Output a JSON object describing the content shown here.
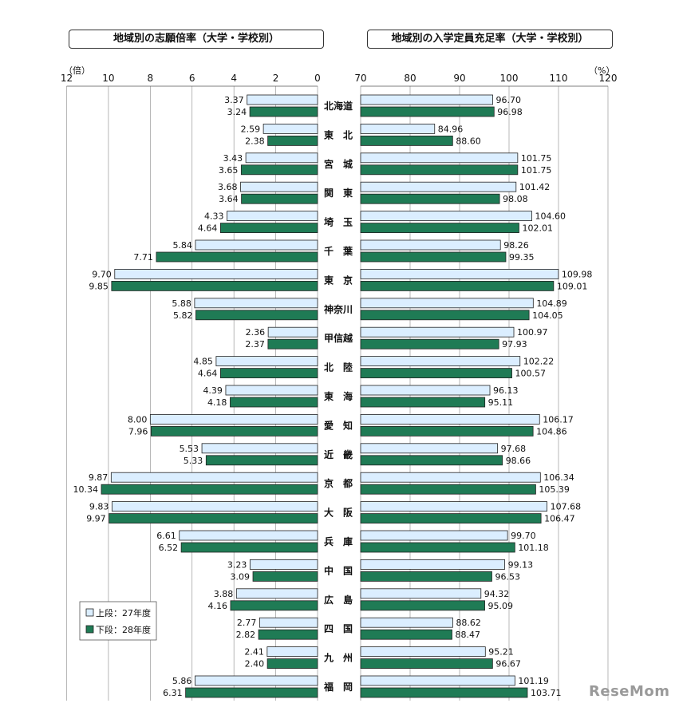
{
  "titles": {
    "left": "地域別の志願倍率（大学・学校別）",
    "right": "地域別の入学定員充足率（大学・学校別）"
  },
  "units": {
    "left": "（倍）",
    "right": "（%）"
  },
  "legend": {
    "upper": "上段：27年度",
    "lower": "下段：28年度"
  },
  "colors": {
    "upper_fill": "#dbeeff",
    "lower_fill": "#1f7b55",
    "outline": "#222222",
    "axis": "#555555"
  },
  "brand": "ReseMom",
  "chart_data": [
    {
      "type": "bar",
      "orientation": "horizontal",
      "direction": "reversed",
      "title": "地域別の志願倍率（大学・学校別）",
      "unit": "（倍）",
      "xlim": [
        0,
        12
      ],
      "ticks": [
        12,
        10,
        8,
        6,
        4,
        2,
        0
      ],
      "grid": true,
      "legend_position": "bottom-left",
      "categories": [
        "北海道",
        "東　北",
        "宮　城",
        "関　東",
        "埼　玉",
        "千　葉",
        "東　京",
        "神奈川",
        "甲信越",
        "北　陸",
        "東　海",
        "愛　知",
        "近　畿",
        "京　都",
        "大　阪",
        "兵　庫",
        "中　国",
        "広　島",
        "四　国",
        "九　州",
        "福　岡"
      ],
      "series": [
        {
          "name": "上段：27年度",
          "values": [
            3.37,
            2.59,
            3.43,
            3.68,
            4.33,
            5.84,
            9.7,
            5.88,
            2.36,
            4.85,
            4.39,
            8.0,
            5.53,
            9.87,
            9.83,
            6.61,
            3.23,
            3.88,
            2.77,
            2.41,
            5.86
          ],
          "labels": [
            "3.37",
            "2.59",
            "3.43",
            "3.68",
            "4.33",
            "5.84",
            "9.70",
            "5.88",
            "2.36",
            "4.85",
            "4.39",
            "8.00",
            "5.53",
            "9.87",
            "9.83",
            "6.61",
            "3.23",
            "3.88",
            "2.77",
            "2.41",
            "5.86"
          ]
        },
        {
          "name": "下段：28年度",
          "values": [
            3.24,
            2.38,
            3.65,
            3.64,
            4.64,
            7.71,
            9.85,
            5.82,
            2.37,
            4.64,
            4.18,
            7.96,
            5.33,
            10.34,
            9.97,
            6.52,
            3.09,
            4.16,
            2.82,
            2.4,
            6.31
          ],
          "labels": [
            "3.24",
            "2.38",
            "3.65",
            "3.64",
            "4.64",
            "7.71",
            "9.85",
            "5.82",
            "2.37",
            "4.64",
            "4.18",
            "7.96",
            "5.33",
            "10.34",
            "9.97",
            "6.52",
            "3.09",
            "4.16",
            "2.82",
            "2.40",
            "6.31"
          ]
        }
      ]
    },
    {
      "type": "bar",
      "orientation": "horizontal",
      "title": "地域別の入学定員充足率（大学・学校別）",
      "unit": "（%）",
      "xlim": [
        70,
        120
      ],
      "ticks": [
        70,
        80,
        90,
        100,
        110,
        120
      ],
      "grid": true,
      "categories": [
        "北海道",
        "東　北",
        "宮　城",
        "関　東",
        "埼　玉",
        "千　葉",
        "東　京",
        "神奈川",
        "甲信越",
        "北　陸",
        "東　海",
        "愛　知",
        "近　畿",
        "京　都",
        "大　阪",
        "兵　庫",
        "中　国",
        "広　島",
        "四　国",
        "九　州",
        "福　岡"
      ],
      "series": [
        {
          "name": "上段：27年度",
          "values": [
            96.7,
            84.96,
            101.75,
            101.42,
            104.6,
            98.26,
            109.98,
            104.89,
            100.97,
            102.22,
            96.13,
            106.17,
            97.68,
            106.34,
            107.68,
            99.7,
            99.13,
            94.32,
            88.62,
            95.21,
            101.19
          ],
          "labels": [
            "96.70",
            "84.96",
            "101.75",
            "101.42",
            "104.60",
            "98.26",
            "109.98",
            "104.89",
            "100.97",
            "102.22",
            "96.13",
            "106.17",
            "97.68",
            "106.34",
            "107.68",
            "99.70",
            "99.13",
            "94.32",
            "88.62",
            "95.21",
            "101.19"
          ]
        },
        {
          "name": "下段：28年度",
          "values": [
            96.98,
            88.6,
            101.75,
            98.08,
            102.01,
            99.35,
            109.01,
            104.05,
            97.93,
            100.57,
            95.11,
            104.86,
            98.66,
            105.39,
            106.47,
            101.18,
            96.53,
            95.09,
            88.47,
            96.67,
            103.71
          ],
          "labels": [
            "96.98",
            "88.60",
            "101.75",
            "98.08",
            "102.01",
            "99.35",
            "109.01",
            "104.05",
            "97.93",
            "100.57",
            "95.11",
            "104.86",
            "98.66",
            "105.39",
            "106.47",
            "101.18",
            "96.53",
            "95.09",
            "88.47",
            "96.67",
            "103.71"
          ]
        }
      ]
    }
  ]
}
